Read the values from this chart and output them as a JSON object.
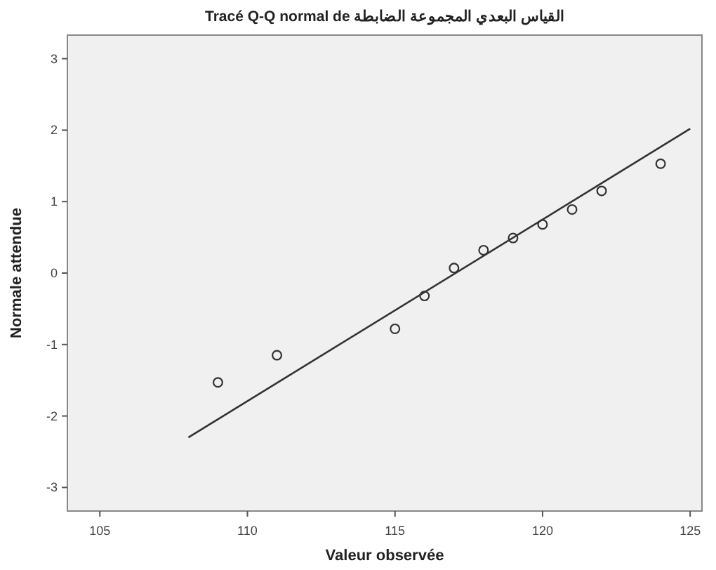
{
  "chart_data": {
    "type": "scatter",
    "title": "Tracé Q-Q normal de القياس البعدي المجموعة الضابطة",
    "xlabel": "Valeur observée",
    "ylabel": "Normale attendue",
    "xlim": [
      103.9,
      125.4
    ],
    "ylim": [
      -3.33,
      3.33
    ],
    "xticks": [
      105,
      110,
      115,
      120,
      125
    ],
    "yticks": [
      -3,
      -2,
      -1,
      0,
      1,
      2,
      3
    ],
    "grid": false,
    "marker": "circle",
    "series": [
      {
        "color": "#333333",
        "x": [
          109,
          111,
          115,
          116,
          117,
          118,
          119,
          120,
          121,
          122,
          124
        ],
        "values": [
          -1.53,
          -1.15,
          -0.78,
          -0.32,
          0.07,
          0.32,
          0.49,
          0.68,
          0.89,
          1.15,
          1.53
        ]
      },
      {
        "type": "line",
        "color": "#333333",
        "marker": "none",
        "line_style": "solid",
        "x": [
          108,
          125
        ],
        "values": [
          -2.3,
          2.02
        ]
      }
    ]
  }
}
